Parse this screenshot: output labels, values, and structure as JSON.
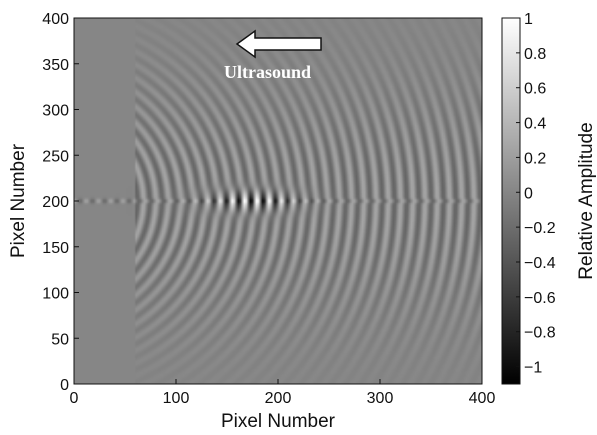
{
  "chart_data": {
    "type": "heatmap",
    "title": "",
    "xlabel": "Pixel Number",
    "ylabel": "Pixel Number",
    "xlim": [
      0,
      400
    ],
    "ylim": [
      0,
      400
    ],
    "x_ticks": [
      "0",
      "100",
      "200",
      "300",
      "400"
    ],
    "y_ticks": [
      "0",
      "50",
      "100",
      "150",
      "200",
      "250",
      "300",
      "350",
      "400"
    ],
    "colorbar": {
      "label": "Relative Amplitude",
      "range": [
        -1.1,
        1
      ],
      "colormap": "gray",
      "ticks": [
        "1",
        "0.8",
        "0.6",
        "0.4",
        "0.2",
        "0",
        "−0.2",
        "−0.4",
        "−0.6",
        "−0.8",
        "−1"
      ]
    },
    "background_value": 0,
    "features": {
      "strong_pulse_center": [
        175,
        200
      ],
      "strong_pulse_x_range": [
        95,
        215
      ],
      "strong_pulse_peak_abs": 1.0,
      "wavefront_arcs_x_range": [
        60,
        400
      ],
      "wavefront_arcs_y_range": [
        60,
        350
      ],
      "wave_period_px": 12
    },
    "annotation": {
      "text": "Ultrasound",
      "arrow_direction": "left"
    }
  },
  "colors": {
    "background_gray": "#8c8c8c",
    "annotation": "#ffffff",
    "axis": "#111111"
  }
}
